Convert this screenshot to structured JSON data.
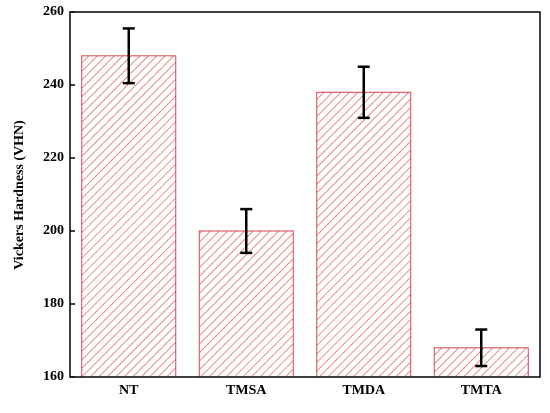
{
  "chart_data": {
    "type": "bar",
    "y_label": "Vickers Hardness (VHN)",
    "categories": [
      "NT",
      "TMSA",
      "TMDA",
      "TMTA"
    ],
    "values": [
      248,
      200,
      238,
      168
    ],
    "errors": [
      7.5,
      6,
      7,
      5
    ],
    "color": "#d9444a",
    "hatch": true,
    "ylim": [
      160,
      260
    ],
    "yticks": [
      160,
      180,
      200,
      220,
      240,
      260
    ]
  }
}
